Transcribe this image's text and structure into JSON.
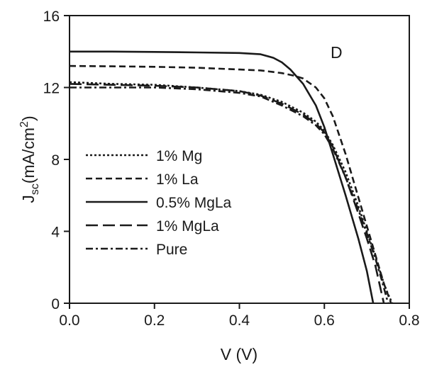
{
  "chart_data": {
    "type": "line",
    "panel_label": "D",
    "xlabel": "V (V)",
    "ylabel": {
      "main": "J",
      "sub": "sc",
      "paren_open": "(mA/cm",
      "sup": "2",
      "paren_close": ")"
    },
    "xlim": [
      0.0,
      0.8
    ],
    "ylim": [
      0,
      16
    ],
    "x_ticks": [
      0.0,
      0.2,
      0.4,
      0.6,
      0.8
    ],
    "x_tick_labels": [
      "0.0",
      "0.2",
      "0.4",
      "0.6",
      "0.8"
    ],
    "y_ticks": [
      0,
      4,
      8,
      12,
      16
    ],
    "y_tick_labels": [
      "0",
      "4",
      "8",
      "12",
      "16"
    ],
    "grid": false,
    "legend_position": "lower-left",
    "series": [
      {
        "name": "1% Mg",
        "dash": "dotted",
        "x": [
          0.0,
          0.1,
          0.2,
          0.3,
          0.4,
          0.45,
          0.5,
          0.55,
          0.58,
          0.6,
          0.62,
          0.65,
          0.68,
          0.7,
          0.72,
          0.74,
          0.75,
          0.76
        ],
        "y": [
          12.3,
          12.2,
          12.15,
          12.0,
          11.8,
          11.6,
          11.2,
          10.6,
          10.1,
          9.6,
          8.8,
          7.3,
          5.4,
          4.0,
          2.6,
          1.1,
          0.5,
          0.0
        ]
      },
      {
        "name": "1% La",
        "dash": "dashed",
        "x": [
          0.0,
          0.1,
          0.2,
          0.3,
          0.4,
          0.45,
          0.5,
          0.53,
          0.55,
          0.58,
          0.6,
          0.62,
          0.65,
          0.68,
          0.7,
          0.72,
          0.74,
          0.757
        ],
        "y": [
          13.2,
          13.18,
          13.15,
          13.1,
          13.0,
          12.95,
          12.8,
          12.65,
          12.5,
          12.0,
          11.4,
          10.4,
          8.3,
          5.9,
          4.3,
          2.7,
          1.1,
          0.0
        ]
      },
      {
        "name": "0.5% MgLa",
        "dash": "solid",
        "x": [
          0.0,
          0.1,
          0.2,
          0.3,
          0.4,
          0.45,
          0.48,
          0.5,
          0.52,
          0.55,
          0.58,
          0.6,
          0.62,
          0.65,
          0.68,
          0.7,
          0.715
        ],
        "y": [
          14.0,
          14.0,
          13.98,
          13.95,
          13.92,
          13.85,
          13.65,
          13.4,
          13.0,
          12.2,
          11.0,
          9.8,
          8.3,
          6.0,
          3.6,
          1.8,
          0.0
        ]
      },
      {
        "name": "1% MgLa",
        "dash": "long-dash",
        "x": [
          0.0,
          0.1,
          0.2,
          0.3,
          0.4,
          0.45,
          0.5,
          0.55,
          0.58,
          0.6,
          0.62,
          0.65,
          0.68,
          0.7,
          0.72,
          0.74
        ],
        "y": [
          12.2,
          12.15,
          12.1,
          12.0,
          11.8,
          11.55,
          11.1,
          10.5,
          10.0,
          9.5,
          8.7,
          7.0,
          5.0,
          3.6,
          2.1,
          0.0
        ]
      },
      {
        "name": "Pure",
        "dash": "dash-dot",
        "x": [
          0.0,
          0.1,
          0.2,
          0.3,
          0.4,
          0.45,
          0.5,
          0.55,
          0.58,
          0.6,
          0.62,
          0.65,
          0.68,
          0.7,
          0.72,
          0.735,
          0.75
        ],
        "y": [
          12.0,
          12.0,
          12.0,
          11.9,
          11.7,
          11.5,
          11.0,
          10.4,
          9.9,
          9.4,
          8.6,
          7.0,
          5.2,
          3.9,
          2.5,
          1.3,
          0.0
        ]
      }
    ]
  }
}
